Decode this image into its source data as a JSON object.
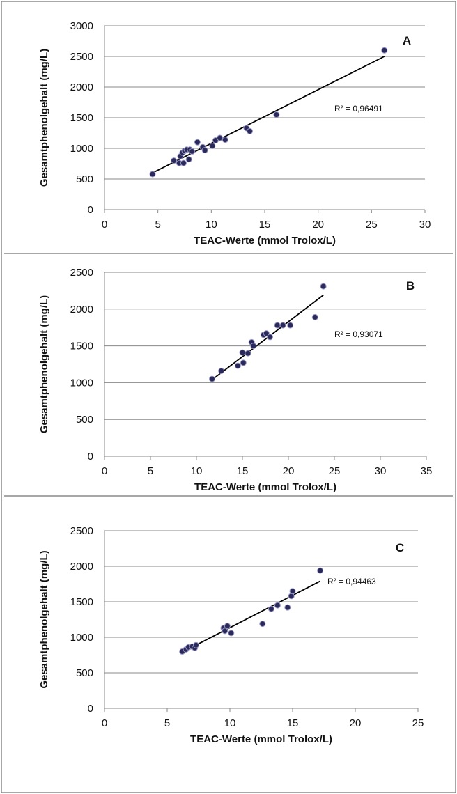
{
  "chart_data": [
    {
      "type": "scatter",
      "panel_label": "A",
      "xlabel": "TEAC-Werte (mmol Trolox/L)",
      "ylabel": "Gesamtphenolgehalt (mg/L)",
      "xlim": [
        0,
        30
      ],
      "ylim": [
        0,
        3000
      ],
      "xticks": [
        0,
        5,
        10,
        15,
        20,
        25,
        30
      ],
      "yticks": [
        0,
        500,
        1000,
        1500,
        2000,
        2500,
        3000
      ],
      "grid": "horizontal",
      "r2_label": "R² = 0,96491",
      "trendline": {
        "x": [
          4.5,
          26.2
        ],
        "y": [
          600,
          2500
        ]
      },
      "points": [
        {
          "x": 4.5,
          "y": 580
        },
        {
          "x": 6.5,
          "y": 800
        },
        {
          "x": 7.0,
          "y": 760
        },
        {
          "x": 7.1,
          "y": 870
        },
        {
          "x": 7.3,
          "y": 930
        },
        {
          "x": 7.4,
          "y": 760
        },
        {
          "x": 7.5,
          "y": 960
        },
        {
          "x": 7.7,
          "y": 980
        },
        {
          "x": 7.9,
          "y": 820
        },
        {
          "x": 8.0,
          "y": 980
        },
        {
          "x": 8.2,
          "y": 950
        },
        {
          "x": 8.7,
          "y": 1100
        },
        {
          "x": 9.2,
          "y": 1020
        },
        {
          "x": 9.4,
          "y": 970
        },
        {
          "x": 10.1,
          "y": 1040
        },
        {
          "x": 10.4,
          "y": 1130
        },
        {
          "x": 10.8,
          "y": 1170
        },
        {
          "x": 11.3,
          "y": 1140
        },
        {
          "x": 13.3,
          "y": 1330
        },
        {
          "x": 13.6,
          "y": 1280
        },
        {
          "x": 16.1,
          "y": 1550
        },
        {
          "x": 26.2,
          "y": 2600
        }
      ]
    },
    {
      "type": "scatter",
      "panel_label": "B",
      "xlabel": "TEAC-Werte (mmol Trolox/L)",
      "ylabel": "Gesamtphenolgehalt (mg/L)",
      "xlim": [
        0,
        35
      ],
      "ylim": [
        0,
        2500
      ],
      "xticks": [
        0,
        5,
        10,
        15,
        20,
        25,
        30,
        35
      ],
      "yticks": [
        0,
        500,
        1000,
        1500,
        2000,
        2500
      ],
      "grid": "horizontal",
      "r2_label": "R² = 0,93071",
      "trendline": {
        "x": [
          11.7,
          23.8
        ],
        "y": [
          1040,
          2190
        ]
      },
      "points": [
        {
          "x": 11.7,
          "y": 1050
        },
        {
          "x": 12.7,
          "y": 1160
        },
        {
          "x": 14.5,
          "y": 1230
        },
        {
          "x": 15.0,
          "y": 1410
        },
        {
          "x": 15.1,
          "y": 1270
        },
        {
          "x": 15.6,
          "y": 1400
        },
        {
          "x": 16.0,
          "y": 1550
        },
        {
          "x": 16.2,
          "y": 1500
        },
        {
          "x": 17.3,
          "y": 1650
        },
        {
          "x": 17.6,
          "y": 1670
        },
        {
          "x": 18.0,
          "y": 1620
        },
        {
          "x": 18.8,
          "y": 1780
        },
        {
          "x": 19.4,
          "y": 1780
        },
        {
          "x": 20.2,
          "y": 1780
        },
        {
          "x": 22.9,
          "y": 1890
        },
        {
          "x": 23.8,
          "y": 2310
        }
      ]
    },
    {
      "type": "scatter",
      "panel_label": "C",
      "xlabel": "TEAC-Werte (mmol Trolox/L)",
      "ylabel": "Gesamtphenolgehalt (mg/L)",
      "xlim": [
        0,
        25
      ],
      "ylim": [
        0,
        2500
      ],
      "xticks": [
        0,
        5,
        10,
        15,
        20,
        25
      ],
      "yticks": [
        0,
        500,
        1000,
        1500,
        2000,
        2500
      ],
      "grid": "horizontal",
      "r2_label": "R² = 0,94463",
      "trendline": {
        "x": [
          6.2,
          17.2
        ],
        "y": [
          790,
          1790
        ]
      },
      "points": [
        {
          "x": 6.2,
          "y": 800
        },
        {
          "x": 6.5,
          "y": 830
        },
        {
          "x": 6.7,
          "y": 860
        },
        {
          "x": 7.0,
          "y": 870
        },
        {
          "x": 7.2,
          "y": 850
        },
        {
          "x": 7.3,
          "y": 890
        },
        {
          "x": 9.5,
          "y": 1130
        },
        {
          "x": 9.6,
          "y": 1090
        },
        {
          "x": 9.8,
          "y": 1160
        },
        {
          "x": 10.1,
          "y": 1060
        },
        {
          "x": 12.6,
          "y": 1190
        },
        {
          "x": 13.3,
          "y": 1400
        },
        {
          "x": 13.8,
          "y": 1450
        },
        {
          "x": 14.6,
          "y": 1420
        },
        {
          "x": 14.9,
          "y": 1580
        },
        {
          "x": 15.0,
          "y": 1650
        },
        {
          "x": 17.2,
          "y": 1940
        }
      ]
    }
  ]
}
